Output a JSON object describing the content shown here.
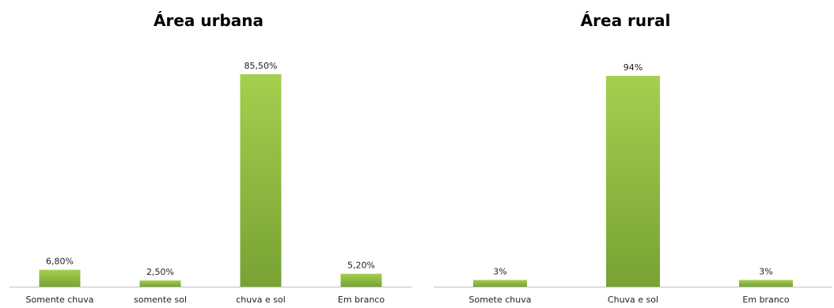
{
  "colors": {
    "bar_light": "#a4cf4e",
    "bar_dark": "#78a233",
    "axis": "#bfbfbf"
  },
  "chart_data": [
    {
      "type": "bar",
      "title": "Área urbana",
      "categories": [
        "Somente chuva",
        "somente sol",
        "chuva e sol",
        "Em branco"
      ],
      "values": [
        6.8,
        2.5,
        85.5,
        5.2
      ],
      "data_labels": [
        "6,80%",
        "2,50%",
        "85,50%",
        "5,20%"
      ],
      "ylim": [
        0,
        85.5
      ],
      "grid": false,
      "legend": "none"
    },
    {
      "type": "bar",
      "title": "Área rural",
      "categories": [
        "Somete chuva",
        "Chuva e sol",
        "Em branco"
      ],
      "values": [
        3,
        94,
        3
      ],
      "data_labels": [
        "3%",
        "94%",
        "3%"
      ],
      "ylim": [
        0,
        94
      ],
      "grid": false,
      "legend": "none"
    }
  ]
}
